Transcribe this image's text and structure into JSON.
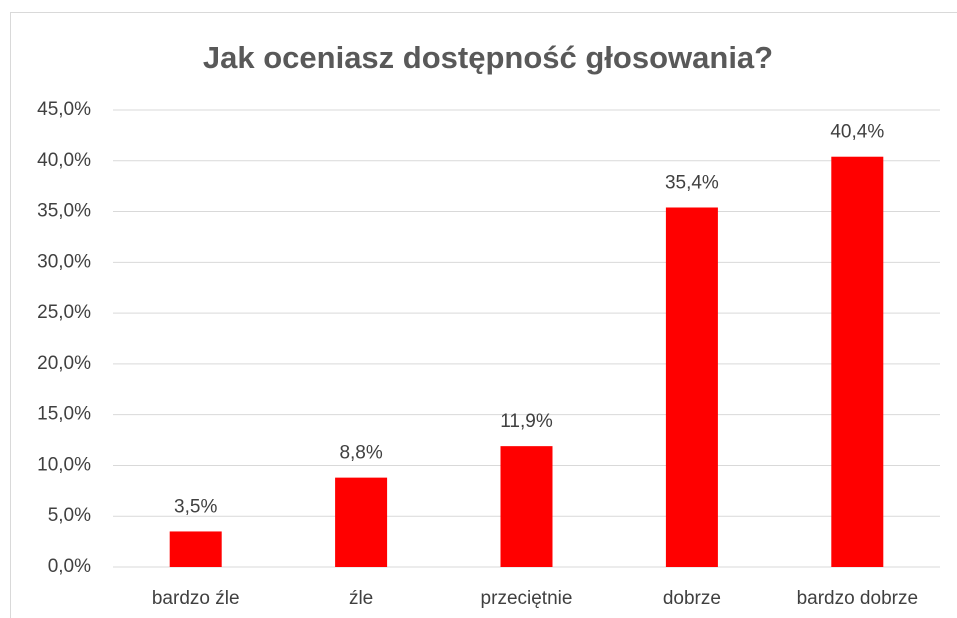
{
  "chart_data": {
    "type": "bar",
    "title": "Jak oceniasz dostępność głosowania?",
    "categories": [
      "bardzo źle",
      "źle",
      "przeciętnie",
      "dobrze",
      "bardzo dobrze"
    ],
    "values": [
      3.5,
      8.8,
      11.9,
      35.4,
      40.4
    ],
    "value_labels": [
      "3,5%",
      "8,8%",
      "11,9%",
      "35,4%",
      "40,4%"
    ],
    "color": "#ff0000",
    "ylim": [
      0,
      45
    ],
    "yticks": [
      {
        "value": 0,
        "label": "0,0%"
      },
      {
        "value": 5,
        "label": "5,0%"
      },
      {
        "value": 10,
        "label": "10,0%"
      },
      {
        "value": 15,
        "label": "15,0%"
      },
      {
        "value": 20,
        "label": "20,0%"
      },
      {
        "value": 25,
        "label": "25,0%"
      },
      {
        "value": 30,
        "label": "30,0%"
      },
      {
        "value": 35,
        "label": "35,0%"
      },
      {
        "value": 40,
        "label": "40,0%"
      },
      {
        "value": 45,
        "label": "45,0%"
      }
    ],
    "grid": true
  }
}
